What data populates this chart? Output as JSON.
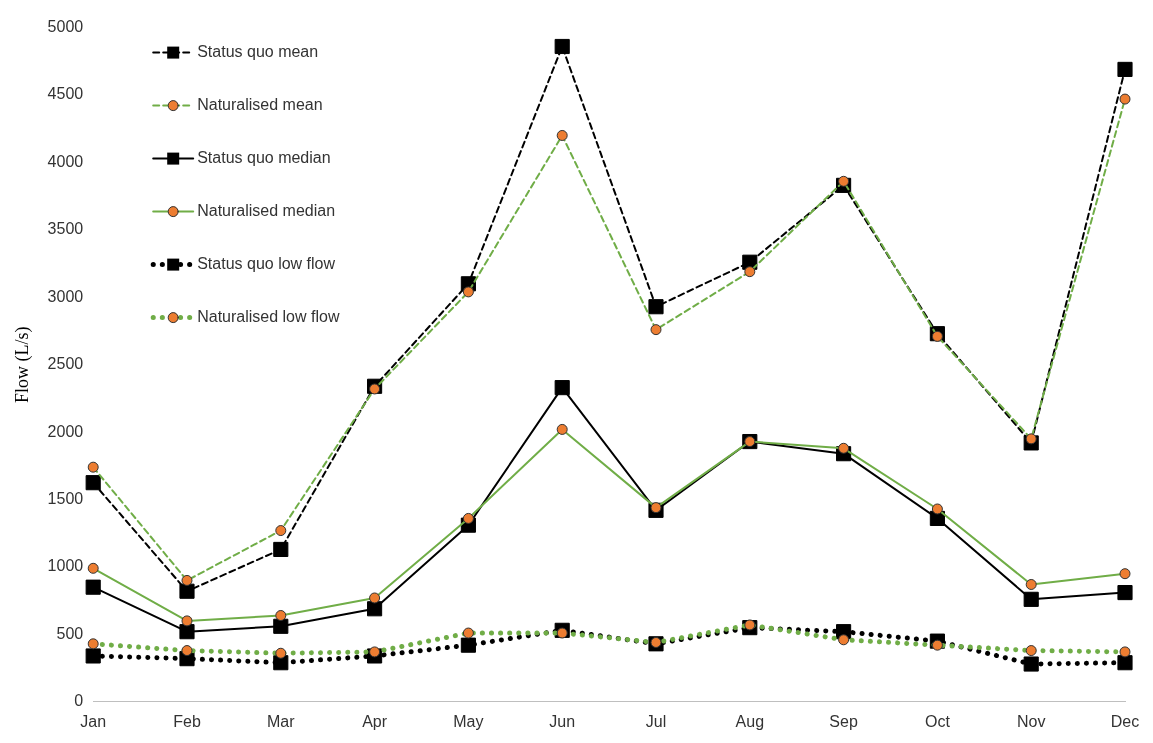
{
  "chart_data": {
    "type": "line",
    "ylabel": "Flow (L/s)",
    "categories": [
      "Jan",
      "Feb",
      "Mar",
      "Apr",
      "May",
      "Jun",
      "Jul",
      "Aug",
      "Sep",
      "Oct",
      "Nov",
      "Dec"
    ],
    "ylim": [
      0,
      5000
    ],
    "yticks": [
      0,
      500,
      1000,
      1500,
      2000,
      2500,
      3000,
      3500,
      4000,
      4500,
      5000
    ],
    "grid": false,
    "legend": "top left",
    "series": [
      {
        "name": "Status quo mean",
        "color": "#000000",
        "line_style": "dashed",
        "marker": "square",
        "values": [
          1625,
          820,
          1130,
          2340,
          3100,
          4860,
          2930,
          3260,
          3830,
          2730,
          1920,
          4690
        ]
      },
      {
        "name": "Naturalised mean",
        "color": "#70ad47",
        "line_style": "dashed",
        "marker": "circle",
        "values": [
          1740,
          900,
          1270,
          2320,
          3040,
          4200,
          2760,
          3190,
          3860,
          2710,
          1950,
          4470
        ]
      },
      {
        "name": "Status quo median",
        "color": "#000000",
        "line_style": "solid",
        "marker": "square",
        "values": [
          850,
          520,
          560,
          690,
          1310,
          2330,
          1420,
          1930,
          1840,
          1360,
          760,
          810
        ]
      },
      {
        "name": "Naturalised median",
        "color": "#70ad47",
        "line_style": "solid",
        "marker": "circle",
        "values": [
          990,
          600,
          640,
          770,
          1360,
          2020,
          1440,
          1930,
          1880,
          1430,
          870,
          950
        ]
      },
      {
        "name": "Status quo low flow",
        "color": "#000000",
        "line_style": "dotted",
        "marker": "square",
        "values": [
          340,
          320,
          290,
          340,
          420,
          530,
          430,
          550,
          520,
          450,
          280,
          290
        ]
      },
      {
        "name": "Naturalised low flow",
        "color": "#70ad47",
        "line_style": "dotted",
        "marker": "circle",
        "values": [
          430,
          380,
          360,
          370,
          510,
          510,
          440,
          570,
          460,
          420,
          380,
          370
        ]
      }
    ]
  }
}
